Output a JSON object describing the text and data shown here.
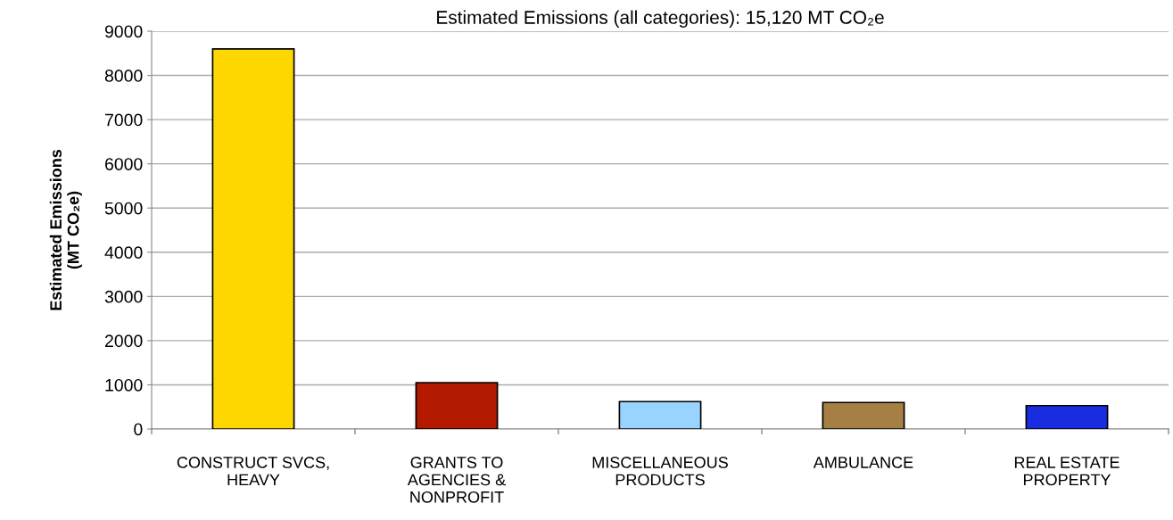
{
  "chart_data": {
    "type": "bar",
    "title": "Estimated Emissions (all categories): 15,120 MT CO₂e",
    "ylabel": "Estimated Emissions\n(MT CO₂e)",
    "categories": [
      "CONSTRUCT SVCS,\nHEAVY",
      "GRANTS TO\nAGENCIES &\nNONPROFIT",
      "MISCELLANEOUS\nPRODUCTS",
      "AMBULANCE",
      "REAL ESTATE\nPROPERTY"
    ],
    "values": [
      8600,
      1050,
      620,
      600,
      530
    ],
    "colors": [
      "#ffd700",
      "#b31a00",
      "#99d3ff",
      "#a67f44",
      "#1a2ce0"
    ],
    "ylim": [
      0,
      9000
    ],
    "yticks": [
      0,
      1000,
      2000,
      3000,
      4000,
      5000,
      6000,
      7000,
      8000,
      9000
    ],
    "grid": "y"
  }
}
